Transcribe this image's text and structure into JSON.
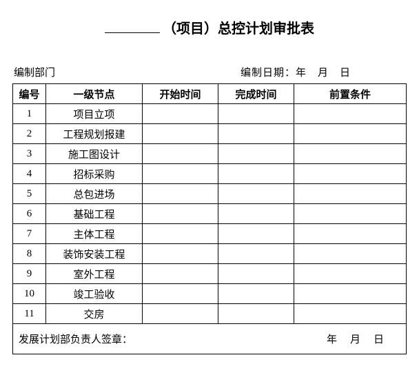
{
  "title": {
    "suffix": "（项目）总控计划审批表"
  },
  "meta": {
    "dept_label": "编制部门",
    "date_label": "编制日期：",
    "date_value": "年　月　日"
  },
  "table": {
    "headers": {
      "num": "编号",
      "node": "一级节点",
      "start": "开始时间",
      "end": "完成时间",
      "cond": "前置条件"
    },
    "rows": [
      {
        "num": "1",
        "node": "项目立项",
        "start": "",
        "end": "",
        "cond": ""
      },
      {
        "num": "2",
        "node": "工程规划报建",
        "start": "",
        "end": "",
        "cond": ""
      },
      {
        "num": "3",
        "node": "施工图设计",
        "start": "",
        "end": "",
        "cond": ""
      },
      {
        "num": "4",
        "node": "招标采购",
        "start": "",
        "end": "",
        "cond": ""
      },
      {
        "num": "5",
        "node": "总包进场",
        "start": "",
        "end": "",
        "cond": ""
      },
      {
        "num": "6",
        "node": "基础工程",
        "start": "",
        "end": "",
        "cond": ""
      },
      {
        "num": "7",
        "node": "主体工程",
        "start": "",
        "end": "",
        "cond": ""
      },
      {
        "num": "8",
        "node": "装饰安装工程",
        "start": "",
        "end": "",
        "cond": ""
      },
      {
        "num": "9",
        "node": "室外工程",
        "start": "",
        "end": "",
        "cond": ""
      },
      {
        "num": "10",
        "node": "竣工验收",
        "start": "",
        "end": "",
        "cond": ""
      },
      {
        "num": "11",
        "node": "交房",
        "start": "",
        "end": "",
        "cond": ""
      }
    ]
  },
  "footer": {
    "label": "发展计划部负责人签章：",
    "date": "年　月　日"
  }
}
